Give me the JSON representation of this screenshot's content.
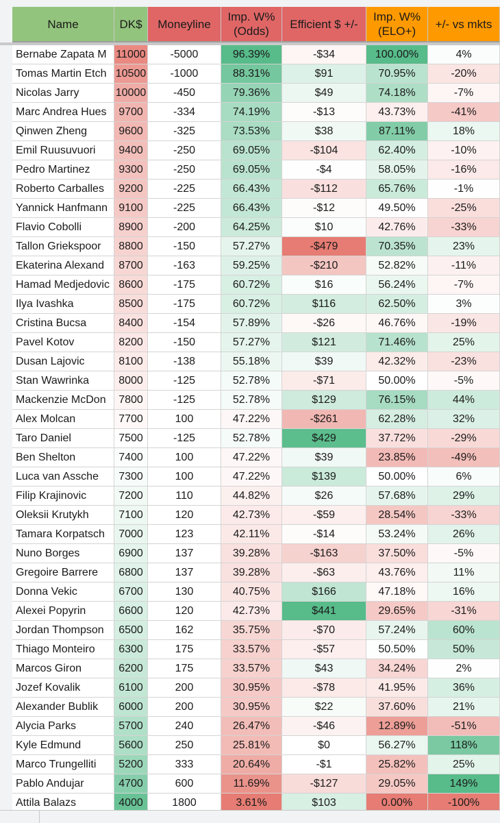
{
  "columns": [
    {
      "key": "name",
      "label": "Name",
      "bg": "#93c47d"
    },
    {
      "key": "dk",
      "label": "DK$",
      "bg": "#93c47d"
    },
    {
      "key": "moneyline",
      "label": "Moneyline",
      "bg": "#e06666"
    },
    {
      "key": "imp_odds",
      "label": "Imp. W%\n(Odds)",
      "bg": "#e06666"
    },
    {
      "key": "efficient",
      "label": "Efficient $ +/-",
      "bg": "#e06666"
    },
    {
      "key": "imp_elo",
      "label": "Imp. W%\n(ELO+)",
      "bg": "#ff9900"
    },
    {
      "key": "vs_mkts",
      "label": "+/- vs  mkts",
      "bg": "#ff9900"
    }
  ],
  "rows": [
    {
      "name": "Bernabe Zapata M",
      "dk": "11000",
      "moneyline": "-5000",
      "imp_odds": "96.39%",
      "efficient": "-$34",
      "imp_elo": "100.00%",
      "vs_mkts": "4%"
    },
    {
      "name": "Tomas Martin Etch",
      "dk": "10500",
      "moneyline": "-1000",
      "imp_odds": "88.31%",
      "efficient": "$91",
      "imp_elo": "70.95%",
      "vs_mkts": "-20%"
    },
    {
      "name": "Nicolas Jarry",
      "dk": "10000",
      "moneyline": "-450",
      "imp_odds": "79.36%",
      "efficient": "$49",
      "imp_elo": "74.18%",
      "vs_mkts": "-7%"
    },
    {
      "name": "Marc Andrea Hues",
      "dk": "9700",
      "moneyline": "-334",
      "imp_odds": "74.19%",
      "efficient": "-$13",
      "imp_elo": "43.73%",
      "vs_mkts": "-41%"
    },
    {
      "name": "Qinwen Zheng",
      "dk": "9600",
      "moneyline": "-325",
      "imp_odds": "73.53%",
      "efficient": "$38",
      "imp_elo": "87.11%",
      "vs_mkts": "18%"
    },
    {
      "name": "Emil Ruusuvuori",
      "dk": "9400",
      "moneyline": "-250",
      "imp_odds": "69.05%",
      "efficient": "-$104",
      "imp_elo": "62.40%",
      "vs_mkts": "-10%"
    },
    {
      "name": "Pedro Martinez",
      "dk": "9300",
      "moneyline": "-250",
      "imp_odds": "69.05%",
      "efficient": "-$4",
      "imp_elo": "58.05%",
      "vs_mkts": "-16%"
    },
    {
      "name": "Roberto Carballes",
      "dk": "9200",
      "moneyline": "-225",
      "imp_odds": "66.43%",
      "efficient": "-$112",
      "imp_elo": "65.76%",
      "vs_mkts": "-1%"
    },
    {
      "name": "Yannick Hanfmann",
      "dk": "9100",
      "moneyline": "-225",
      "imp_odds": "66.43%",
      "efficient": "-$12",
      "imp_elo": "49.50%",
      "vs_mkts": "-25%"
    },
    {
      "name": "Flavio Cobolli",
      "dk": "8900",
      "moneyline": "-200",
      "imp_odds": "64.25%",
      "efficient": "$10",
      "imp_elo": "42.76%",
      "vs_mkts": "-33%"
    },
    {
      "name": "Tallon Griekspoor",
      "dk": "8800",
      "moneyline": "-150",
      "imp_odds": "57.27%",
      "efficient": "-$479",
      "imp_elo": "70.35%",
      "vs_mkts": "23%"
    },
    {
      "name": "Ekaterina Alexand",
      "dk": "8700",
      "moneyline": "-163",
      "imp_odds": "59.25%",
      "efficient": "-$210",
      "imp_elo": "52.82%",
      "vs_mkts": "-11%"
    },
    {
      "name": "Hamad Medjedovic",
      "dk": "8600",
      "moneyline": "-175",
      "imp_odds": "60.72%",
      "efficient": "$16",
      "imp_elo": "56.24%",
      "vs_mkts": "-7%"
    },
    {
      "name": "Ilya Ivashka",
      "dk": "8500",
      "moneyline": "-175",
      "imp_odds": "60.72%",
      "efficient": "$116",
      "imp_elo": "62.50%",
      "vs_mkts": "3%"
    },
    {
      "name": "Cristina Bucsa",
      "dk": "8400",
      "moneyline": "-154",
      "imp_odds": "57.89%",
      "efficient": "-$26",
      "imp_elo": "46.76%",
      "vs_mkts": "-19%"
    },
    {
      "name": "Pavel Kotov",
      "dk": "8200",
      "moneyline": "-150",
      "imp_odds": "57.27%",
      "efficient": "$121",
      "imp_elo": "71.46%",
      "vs_mkts": "25%"
    },
    {
      "name": "Dusan Lajovic",
      "dk": "8100",
      "moneyline": "-138",
      "imp_odds": "55.18%",
      "efficient": "$39",
      "imp_elo": "42.32%",
      "vs_mkts": "-23%"
    },
    {
      "name": "Stan Wawrinka",
      "dk": "8000",
      "moneyline": "-125",
      "imp_odds": "52.78%",
      "efficient": "-$71",
      "imp_elo": "50.00%",
      "vs_mkts": "-5%"
    },
    {
      "name": "Mackenzie McDon",
      "dk": "7800",
      "moneyline": "-125",
      "imp_odds": "52.78%",
      "efficient": "$129",
      "imp_elo": "76.15%",
      "vs_mkts": "44%"
    },
    {
      "name": "Alex Molcan",
      "dk": "7700",
      "moneyline": "100",
      "imp_odds": "47.22%",
      "efficient": "-$261",
      "imp_elo": "62.28%",
      "vs_mkts": "32%"
    },
    {
      "name": "Taro Daniel",
      "dk": "7500",
      "moneyline": "-125",
      "imp_odds": "52.78%",
      "efficient": "$429",
      "imp_elo": "37.72%",
      "vs_mkts": "-29%"
    },
    {
      "name": "Ben Shelton",
      "dk": "7400",
      "moneyline": "100",
      "imp_odds": "47.22%",
      "efficient": "$39",
      "imp_elo": "23.85%",
      "vs_mkts": "-49%"
    },
    {
      "name": "Luca van Assche",
      "dk": "7300",
      "moneyline": "100",
      "imp_odds": "47.22%",
      "efficient": "$139",
      "imp_elo": "50.00%",
      "vs_mkts": "6%"
    },
    {
      "name": "Filip Krajinovic",
      "dk": "7200",
      "moneyline": "110",
      "imp_odds": "44.82%",
      "efficient": "$26",
      "imp_elo": "57.68%",
      "vs_mkts": "29%"
    },
    {
      "name": "Oleksii Krutykh",
      "dk": "7100",
      "moneyline": "120",
      "imp_odds": "42.73%",
      "efficient": "-$59",
      "imp_elo": "28.54%",
      "vs_mkts": "-33%"
    },
    {
      "name": "Tamara Korpatsch",
      "dk": "7000",
      "moneyline": "123",
      "imp_odds": "42.11%",
      "efficient": "-$14",
      "imp_elo": "53.24%",
      "vs_mkts": "26%"
    },
    {
      "name": "Nuno Borges",
      "dk": "6900",
      "moneyline": "137",
      "imp_odds": "39.28%",
      "efficient": "-$163",
      "imp_elo": "37.50%",
      "vs_mkts": "-5%"
    },
    {
      "name": "Gregoire Barrere",
      "dk": "6800",
      "moneyline": "137",
      "imp_odds": "39.28%",
      "efficient": "-$63",
      "imp_elo": "43.76%",
      "vs_mkts": "11%"
    },
    {
      "name": "Donna Vekic",
      "dk": "6700",
      "moneyline": "130",
      "imp_odds": "40.75%",
      "efficient": "$166",
      "imp_elo": "47.18%",
      "vs_mkts": "16%"
    },
    {
      "name": "Alexei Popyrin",
      "dk": "6600",
      "moneyline": "120",
      "imp_odds": "42.73%",
      "efficient": "$441",
      "imp_elo": "29.65%",
      "vs_mkts": "-31%"
    },
    {
      "name": "Jordan Thompson",
      "dk": "6500",
      "moneyline": "162",
      "imp_odds": "35.75%",
      "efficient": "-$70",
      "imp_elo": "57.24%",
      "vs_mkts": "60%"
    },
    {
      "name": "Thiago Monteiro",
      "dk": "6300",
      "moneyline": "175",
      "imp_odds": "33.57%",
      "efficient": "-$57",
      "imp_elo": "50.50%",
      "vs_mkts": "50%"
    },
    {
      "name": "Marcos Giron",
      "dk": "6200",
      "moneyline": "175",
      "imp_odds": "33.57%",
      "efficient": "$43",
      "imp_elo": "34.24%",
      "vs_mkts": "2%"
    },
    {
      "name": "Jozef Kovalik",
      "dk": "6100",
      "moneyline": "200",
      "imp_odds": "30.95%",
      "efficient": "-$78",
      "imp_elo": "41.95%",
      "vs_mkts": "36%"
    },
    {
      "name": "Alexander Bublik",
      "dk": "6000",
      "moneyline": "200",
      "imp_odds": "30.95%",
      "efficient": "$22",
      "imp_elo": "37.60%",
      "vs_mkts": "21%"
    },
    {
      "name": "Alycia Parks",
      "dk": "5700",
      "moneyline": "240",
      "imp_odds": "26.47%",
      "efficient": "-$46",
      "imp_elo": "12.89%",
      "vs_mkts": "-51%"
    },
    {
      "name": "Kyle Edmund",
      "dk": "5600",
      "moneyline": "250",
      "imp_odds": "25.81%",
      "efficient": "$0",
      "imp_elo": "56.27%",
      "vs_mkts": "118%"
    },
    {
      "name": "Marco Trungelliti",
      "dk": "5200",
      "moneyline": "333",
      "imp_odds": "20.64%",
      "efficient": "-$1",
      "imp_elo": "25.82%",
      "vs_mkts": "25%"
    },
    {
      "name": "Pablo Andujar",
      "dk": "4700",
      "moneyline": "600",
      "imp_odds": "11.69%",
      "efficient": "-$127",
      "imp_elo": "29.05%",
      "vs_mkts": "149%"
    },
    {
      "name": "Attila Balazs",
      "dk": "4000",
      "moneyline": "1800",
      "imp_odds": "3.61%",
      "efficient": "$103",
      "imp_elo": "0.00%",
      "vs_mkts": "-100%"
    }
  ],
  "colors": {
    "good": "#57bb8a",
    "bad": "#e67c73",
    "neutral": "#ffffff",
    "gridline": "#d4d4d4",
    "chrome": "#f1f3f4"
  }
}
